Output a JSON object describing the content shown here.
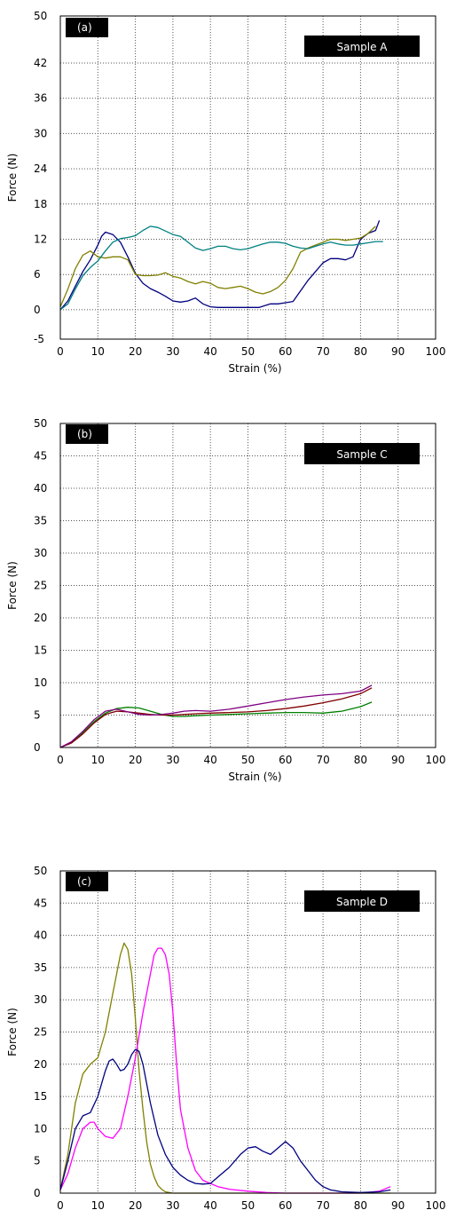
{
  "chart_data": [
    {
      "type": "line",
      "panel_label": "(a)",
      "legend_title": "Sample A",
      "xlabel": "Strain (%)",
      "ylabel": "Force (N)",
      "xlim": [
        0,
        100
      ],
      "ylim": [
        -5,
        50
      ],
      "xticks": [
        0,
        10,
        20,
        30,
        40,
        50,
        60,
        70,
        80,
        90,
        100
      ],
      "yticks": [
        -5,
        0,
        6,
        12,
        18,
        24,
        30,
        36,
        42,
        50
      ],
      "grid": true,
      "series": [
        {
          "color": "#000080",
          "x": [
            0,
            2,
            4,
            6,
            8,
            10,
            11,
            12,
            14,
            16,
            18,
            20,
            22,
            24,
            26,
            28,
            30,
            32,
            34,
            36,
            38,
            40,
            42,
            45,
            48,
            50,
            53,
            56,
            58,
            60,
            62,
            64,
            66,
            68,
            70,
            72,
            74,
            76,
            78,
            80,
            82,
            84,
            85
          ],
          "y": [
            0,
            1.5,
            4,
            6.5,
            8.5,
            11,
            12.5,
            13.2,
            12.8,
            11.5,
            9,
            6.2,
            4.5,
            3.6,
            3,
            2.3,
            1.5,
            1.3,
            1.5,
            2,
            1,
            0.5,
            0.4,
            0.4,
            0.4,
            0.4,
            0.4,
            1,
            1,
            1.2,
            1.4,
            3.2,
            5,
            6.5,
            8,
            8.7,
            8.7,
            8.5,
            9,
            12,
            13,
            13.5,
            15.2
          ]
        },
        {
          "color": "#808000",
          "x": [
            0,
            2,
            4,
            6,
            8,
            10,
            12,
            14,
            16,
            18,
            20,
            22,
            24,
            26,
            28,
            30,
            32,
            34,
            36,
            38,
            40,
            42,
            44,
            46,
            48,
            50,
            52,
            54,
            56,
            58,
            60,
            62,
            64,
            66,
            68,
            70,
            72,
            74,
            76,
            78,
            80,
            82,
            84
          ],
          "y": [
            0.5,
            3.5,
            7,
            9.3,
            10,
            9,
            8.8,
            9,
            9,
            8.5,
            6,
            5.8,
            5.8,
            5.9,
            6.3,
            5.7,
            5.4,
            4.8,
            4.4,
            4.8,
            4.5,
            3.8,
            3.6,
            3.8,
            4,
            3.6,
            3,
            2.7,
            3.1,
            3.8,
            5,
            7,
            9.8,
            10.5,
            11,
            11.5,
            12,
            12,
            11.8,
            12,
            12.2,
            13,
            14.2
          ]
        },
        {
          "color": "#008080",
          "x": [
            0,
            2,
            4,
            6,
            8,
            10,
            12,
            14,
            16,
            18,
            20,
            22,
            24,
            26,
            28,
            30,
            32,
            34,
            36,
            38,
            40,
            42,
            44,
            46,
            48,
            50,
            52,
            54,
            56,
            58,
            60,
            62,
            64,
            66,
            68,
            70,
            72,
            74,
            76,
            78,
            80,
            82,
            84,
            86
          ],
          "y": [
            0,
            1,
            3.5,
            5.8,
            7.2,
            8.3,
            10,
            11.5,
            12.1,
            12.3,
            12.6,
            13.5,
            14.2,
            14,
            13.4,
            12.8,
            12.5,
            11.5,
            10.5,
            10.1,
            10.4,
            10.8,
            10.8,
            10.4,
            10.2,
            10.4,
            10.8,
            11.2,
            11.5,
            11.5,
            11.3,
            10.8,
            10.5,
            10.4,
            10.8,
            11.2,
            11.5,
            11.2,
            11,
            11,
            11.2,
            11.4,
            11.6,
            11.6
          ]
        }
      ]
    },
    {
      "type": "line",
      "panel_label": "(b)",
      "legend_title": "Sample C",
      "xlabel": "Strain (%)",
      "ylabel": "Force (N)",
      "xlim": [
        0,
        100
      ],
      "ylim": [
        0,
        50
      ],
      "xticks": [
        0,
        10,
        20,
        30,
        40,
        50,
        60,
        70,
        80,
        90,
        100
      ],
      "yticks": [
        0,
        5,
        10,
        15,
        20,
        25,
        30,
        35,
        40,
        45,
        50
      ],
      "grid": true,
      "series": [
        {
          "color": "#008000",
          "x": [
            0,
            3,
            6,
            9,
            12,
            15,
            18,
            21,
            24,
            27,
            30,
            33,
            36,
            40,
            45,
            50,
            55,
            60,
            65,
            70,
            75,
            80,
            83
          ],
          "y": [
            0,
            0.8,
            2.3,
            4,
            5.3,
            6,
            6.2,
            6.1,
            5.6,
            5.1,
            4.8,
            4.8,
            4.9,
            5,
            5.1,
            5.2,
            5.3,
            5.4,
            5.4,
            5.3,
            5.6,
            6.3,
            7
          ]
        },
        {
          "color": "#800000",
          "x": [
            0,
            3,
            6,
            9,
            12,
            15,
            18,
            21,
            24,
            27,
            30,
            33,
            36,
            40,
            45,
            50,
            55,
            60,
            65,
            70,
            75,
            80,
            83
          ],
          "y": [
            0,
            0.7,
            2.1,
            3.8,
            5.1,
            5.6,
            5.5,
            5.3,
            5.1,
            5,
            5,
            5.1,
            5.2,
            5.3,
            5.4,
            5.5,
            5.7,
            6,
            6.4,
            6.9,
            7.5,
            8.3,
            9.2
          ]
        },
        {
          "color": "#800080",
          "x": [
            0,
            3,
            6,
            9,
            12,
            15,
            18,
            21,
            24,
            27,
            30,
            33,
            36,
            40,
            45,
            50,
            55,
            60,
            65,
            70,
            75,
            80,
            83
          ],
          "y": [
            0,
            0.9,
            2.5,
            4.3,
            5.6,
            5.9,
            5.5,
            5.1,
            5,
            5.1,
            5.3,
            5.6,
            5.7,
            5.6,
            5.9,
            6.4,
            6.9,
            7.4,
            7.8,
            8.1,
            8.3,
            8.7,
            9.6
          ]
        }
      ]
    },
    {
      "type": "line",
      "panel_label": "(c)",
      "legend_title": "Sample D",
      "xlabel": "Strain (%)",
      "ylabel": "Force (N)",
      "xlim": [
        0,
        100
      ],
      "ylim": [
        0,
        50
      ],
      "xticks": [
        0,
        10,
        20,
        30,
        40,
        50,
        60,
        70,
        80,
        90,
        100
      ],
      "yticks": [
        0,
        5,
        10,
        15,
        20,
        25,
        30,
        35,
        40,
        45,
        50
      ],
      "grid": true,
      "series": [
        {
          "color": "#808000",
          "x": [
            0,
            2,
            4,
            6,
            8,
            10,
            12,
            14,
            16,
            17,
            18,
            19,
            20,
            21,
            22,
            23,
            24,
            25,
            26,
            27,
            28,
            30,
            35,
            40,
            50,
            60,
            70,
            80,
            88
          ],
          "y": [
            0.5,
            6,
            14,
            18.5,
            20,
            21,
            25,
            31,
            37,
            38.8,
            37.8,
            34,
            27,
            19,
            13,
            8,
            4.5,
            2.5,
            1.2,
            0.6,
            0.2,
            0,
            0,
            0,
            0,
            0,
            0,
            0,
            0
          ]
        },
        {
          "color": "#ff00ff",
          "x": [
            0,
            2,
            4,
            6,
            8,
            9,
            10,
            12,
            14,
            16,
            18,
            20,
            22,
            24,
            25,
            26,
            27,
            28,
            29,
            30,
            31,
            32,
            34,
            36,
            38,
            40,
            42,
            45,
            50,
            55,
            60,
            65,
            70,
            75,
            80,
            85,
            88
          ],
          "y": [
            0.5,
            3,
            7,
            10,
            11,
            11,
            10,
            8.8,
            8.5,
            10,
            15,
            21,
            28,
            34,
            37,
            38,
            38,
            37,
            34,
            28,
            20,
            13,
            7,
            3.5,
            2,
            1.5,
            1,
            0.6,
            0.3,
            0.1,
            0,
            0,
            0,
            0,
            0,
            0.3,
            1
          ]
        },
        {
          "color": "#000080",
          "x": [
            0,
            2,
            4,
            6,
            8,
            10,
            12,
            13,
            14,
            15,
            16,
            17,
            18,
            19,
            20,
            21,
            22,
            24,
            26,
            28,
            30,
            32,
            34,
            36,
            38,
            40,
            42,
            45,
            48,
            50,
            52,
            54,
            56,
            58,
            60,
            62,
            64,
            66,
            68,
            70,
            72,
            75,
            80,
            85,
            88
          ],
          "y": [
            0.5,
            5,
            10,
            12,
            12.5,
            15,
            19,
            20.5,
            20.8,
            20,
            19,
            19.2,
            20,
            21.5,
            22.3,
            22,
            20,
            14,
            9,
            6,
            4,
            2.8,
            2,
            1.5,
            1.4,
            1.5,
            2.5,
            4,
            6,
            7,
            7.2,
            6.5,
            6,
            7,
            8,
            7,
            5,
            3.5,
            2,
            1,
            0.5,
            0.2,
            0.1,
            0.2,
            0.5
          ]
        }
      ]
    }
  ]
}
